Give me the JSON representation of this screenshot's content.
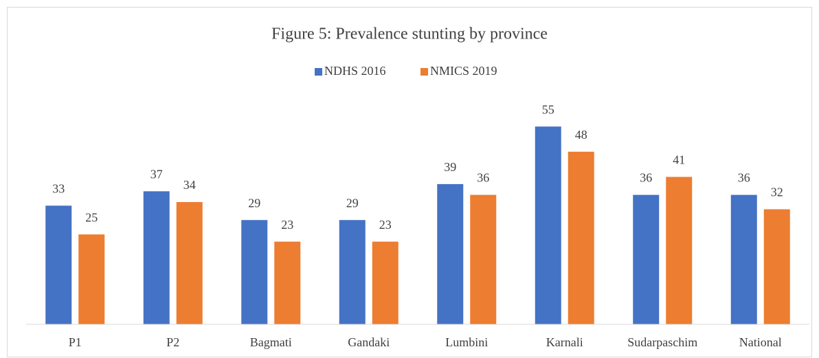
{
  "chart_data": {
    "type": "bar",
    "title": "Figure 5: Prevalence stunting by province",
    "categories": [
      "P1",
      "P2",
      "Bagmati",
      "Gandaki",
      "Lumbini",
      "Karnali",
      "Sudarpaschim",
      "National"
    ],
    "series": [
      {
        "name": "NDHS 2016",
        "color": "#4472c4",
        "values": [
          33,
          37,
          29,
          29,
          39,
          55,
          36,
          36
        ]
      },
      {
        "name": "NMICS 2019",
        "color": "#ed7d31",
        "values": [
          25,
          34,
          23,
          23,
          36,
          48,
          41,
          32
        ]
      }
    ],
    "ylim": [
      0,
      60
    ],
    "legend": "top"
  }
}
